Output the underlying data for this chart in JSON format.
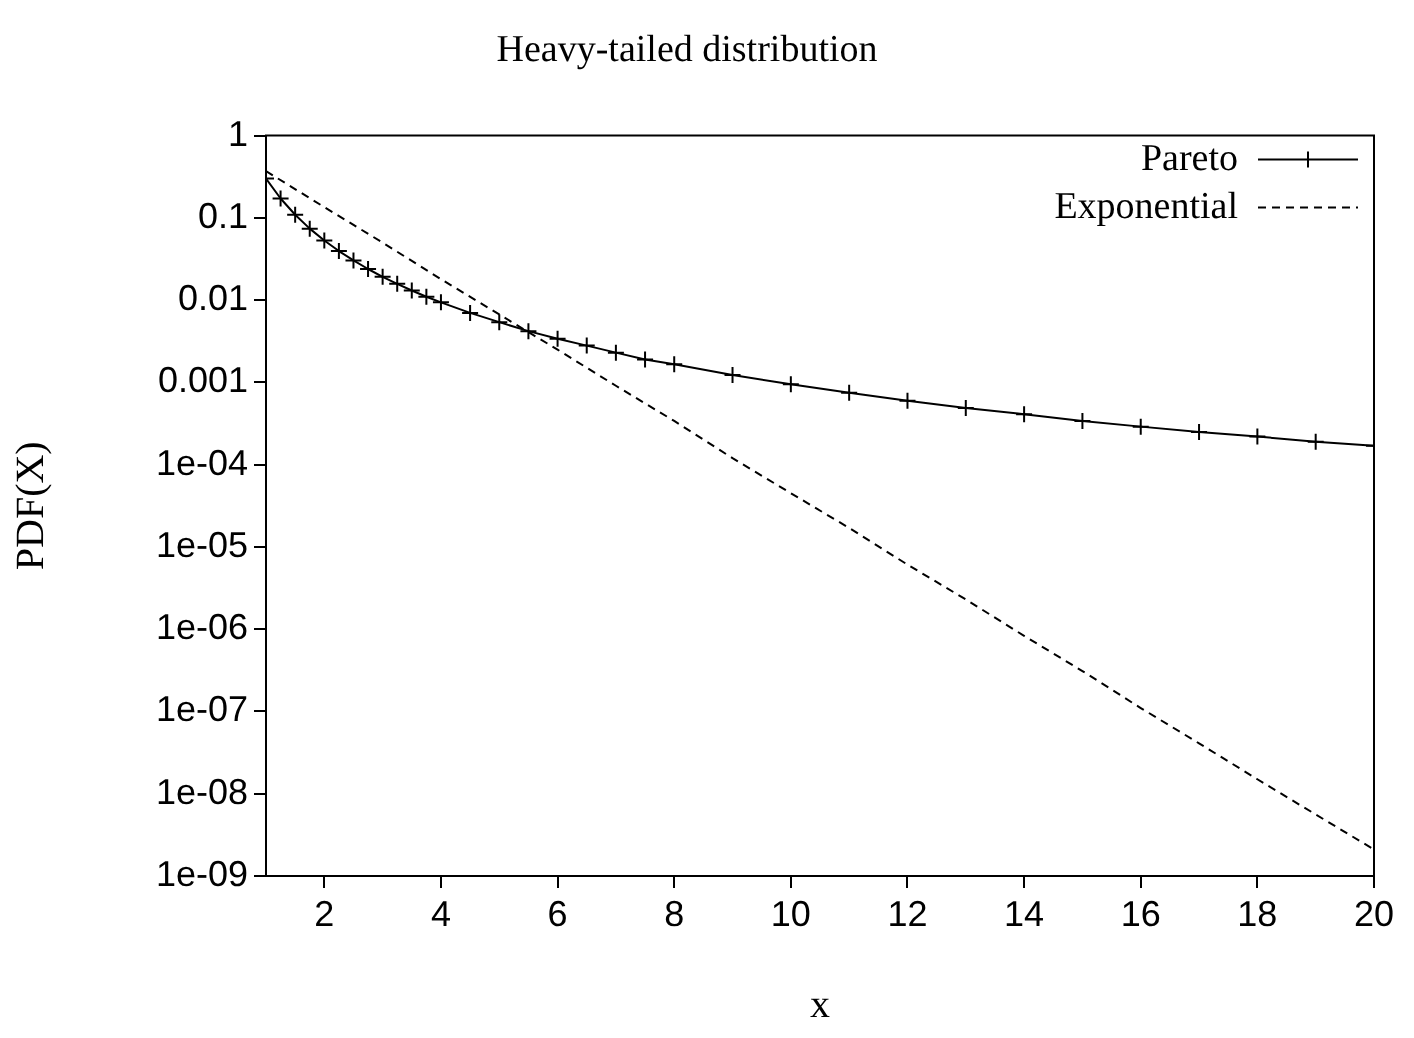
{
  "chart_data": {
    "type": "line",
    "title": "Heavy-tailed distribution",
    "xlabel": "x",
    "ylabel": "PDF(X)",
    "log": "y",
    "grid": false,
    "legend": "top right",
    "xlim": [
      1,
      20
    ],
    "xticks": [
      2,
      4,
      6,
      8,
      10,
      12,
      14,
      16,
      18,
      20
    ],
    "ylim": [
      1e-09,
      1
    ],
    "yticks": [
      1,
      0.1,
      0.01,
      0.001,
      {
        "value": 0.0001,
        "label": "1e-04"
      },
      {
        "value": 1e-05,
        "label": "1e-05"
      },
      {
        "value": 1e-06,
        "label": "1e-06"
      },
      {
        "value": 1e-07,
        "label": "1e-07"
      },
      {
        "value": 1e-08,
        "label": "1e-08"
      },
      {
        "value": 1e-09,
        "label": "1e-09"
      }
    ],
    "series": [
      {
        "name": "Pareto",
        "color": "#000000",
        "marker": "cross",
        "line_style": "solid",
        "x": [
          1,
          1.25,
          1.5,
          1.75,
          2,
          2.25,
          2.5,
          2.75,
          3,
          3.25,
          3.5,
          3.75,
          4,
          4.5,
          5,
          5.5,
          6,
          6.5,
          7,
          7.5,
          8,
          9,
          10,
          11,
          12,
          13,
          14,
          15,
          16,
          17,
          18,
          19,
          20
        ],
        "values": [
          0.3,
          0.172,
          0.109,
          0.074,
          0.053,
          0.0395,
          0.0304,
          0.0239,
          0.0192,
          0.0158,
          0.0131,
          0.011,
          0.0094,
          0.007,
          0.0054,
          0.0042,
          0.0034,
          0.0028,
          0.0023,
          0.0019,
          0.00166,
          0.00123,
          0.00095,
          0.00075,
          0.0006,
          0.00049,
          0.00041,
          0.00034,
          0.00029,
          0.00025,
          0.00022,
          0.00019,
          0.00017
        ]
      },
      {
        "name": "Exponential",
        "color": "#000000",
        "marker": "none",
        "line_style": "dashed",
        "x": [
          1,
          2,
          3,
          4,
          5,
          6,
          7,
          8,
          9,
          10,
          11,
          12,
          13,
          14,
          15,
          16,
          17,
          18,
          19,
          20
        ],
        "values": [
          0.37,
          0.135,
          0.05,
          0.018,
          0.0067,
          0.0025,
          0.00091,
          0.00034,
          0.00012,
          4.5e-05,
          1.7e-05,
          6.1e-06,
          2.3e-06,
          8.3e-07,
          3.1e-07,
          1.1e-07,
          4.1e-08,
          1.5e-08,
          5.6e-09,
          2.1e-09
        ]
      }
    ]
  }
}
